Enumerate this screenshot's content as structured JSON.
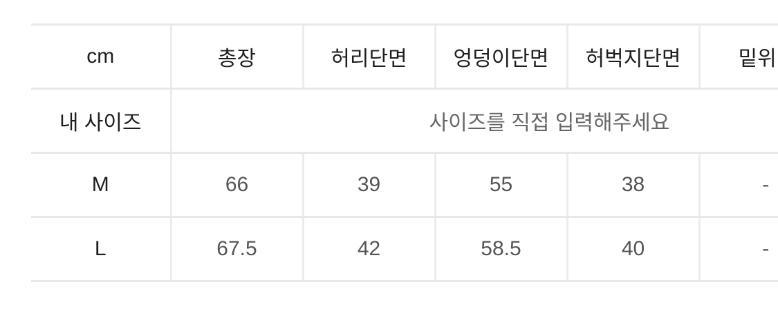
{
  "table": {
    "headers": [
      "cm",
      "총장",
      "허리단면",
      "엉덩이단면",
      "허벅지단면",
      "밑위"
    ],
    "my_size_row": {
      "label": "내 사이즈",
      "placeholder": "사이즈를 직접 입력해주세요"
    },
    "rows": [
      {
        "size": "M",
        "values": [
          "66",
          "39",
          "55",
          "38",
          "-"
        ]
      },
      {
        "size": "L",
        "values": [
          "67.5",
          "42",
          "58.5",
          "40",
          "-"
        ]
      }
    ]
  }
}
